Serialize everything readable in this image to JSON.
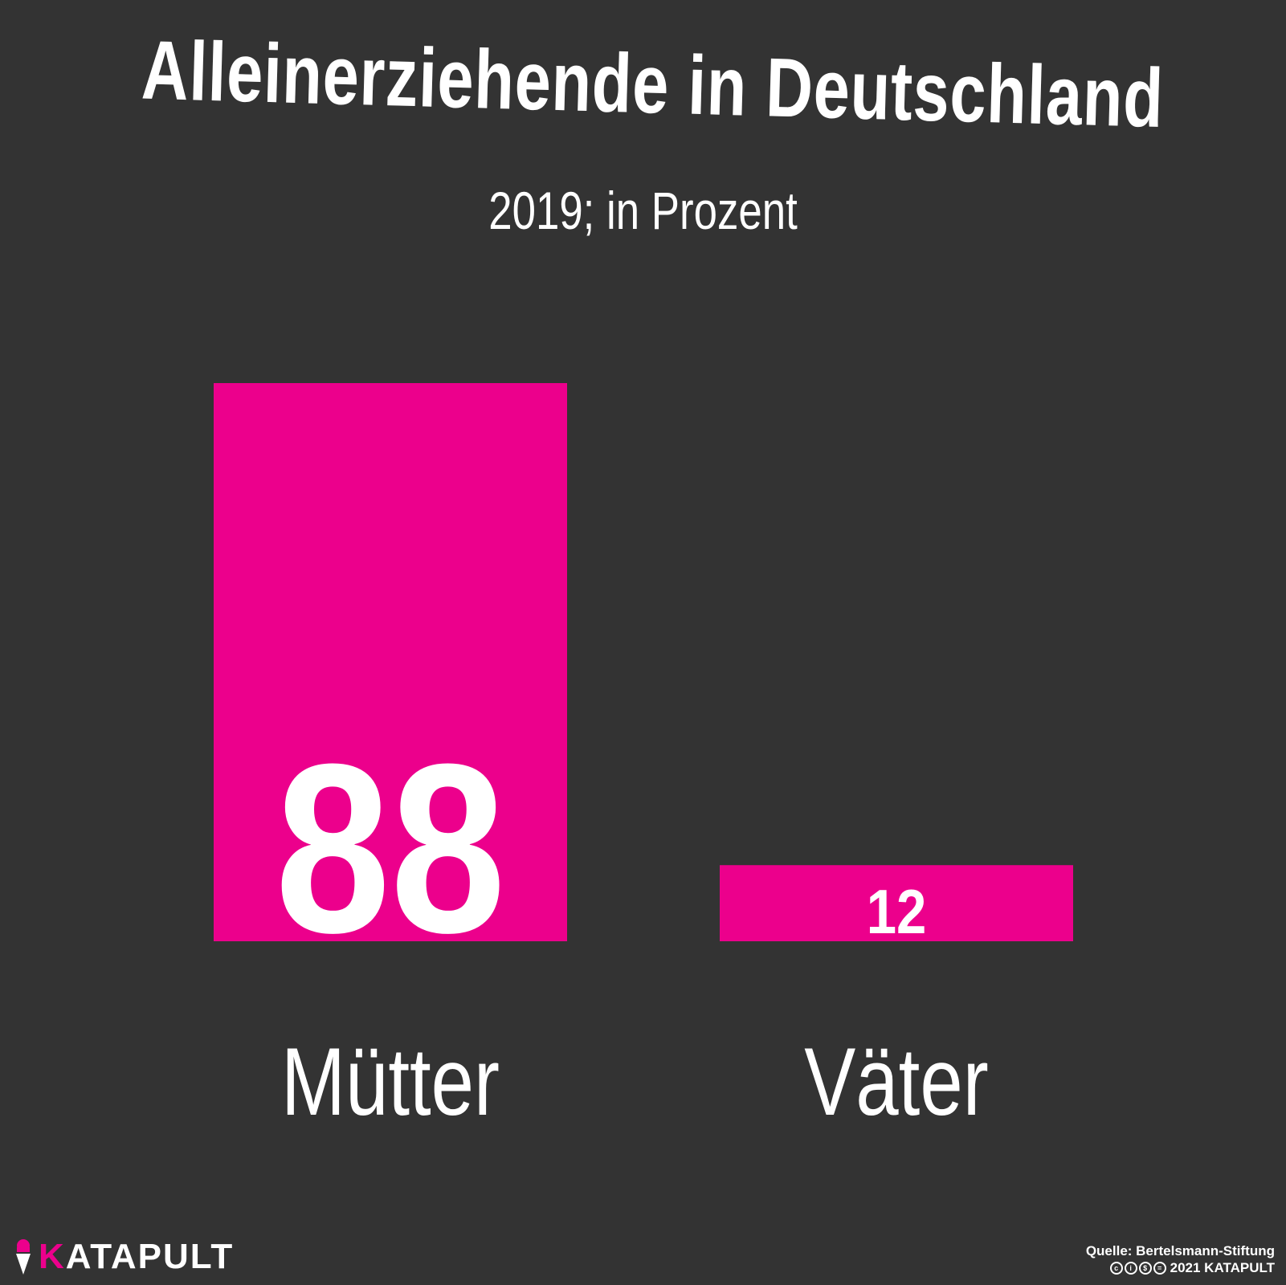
{
  "title": "Alleinerziehende in Deutschland",
  "subtitle": "2019; in Prozent",
  "colors": {
    "background": "#333333",
    "bar": "#ec008c",
    "text": "#ffffff"
  },
  "chart_data": {
    "type": "bar",
    "categories": [
      "Mütter",
      "Väter"
    ],
    "values": [
      88,
      12
    ],
    "value_labels": [
      "88",
      "12"
    ],
    "title": "Alleinerziehende in Deutschland",
    "subtitle": "2019; in Prozent",
    "ylim": [
      0,
      88
    ],
    "grid": false,
    "legend": "none"
  },
  "footer": {
    "brand_initial": "K",
    "brand_rest": "ATAPULT",
    "source": "Quelle: Bertelsmann-Stiftung",
    "copyright": "2021 KATAPULT",
    "license_icons": [
      "cc-icon",
      "by-icon",
      "nc-icon",
      "nd-icon"
    ]
  }
}
